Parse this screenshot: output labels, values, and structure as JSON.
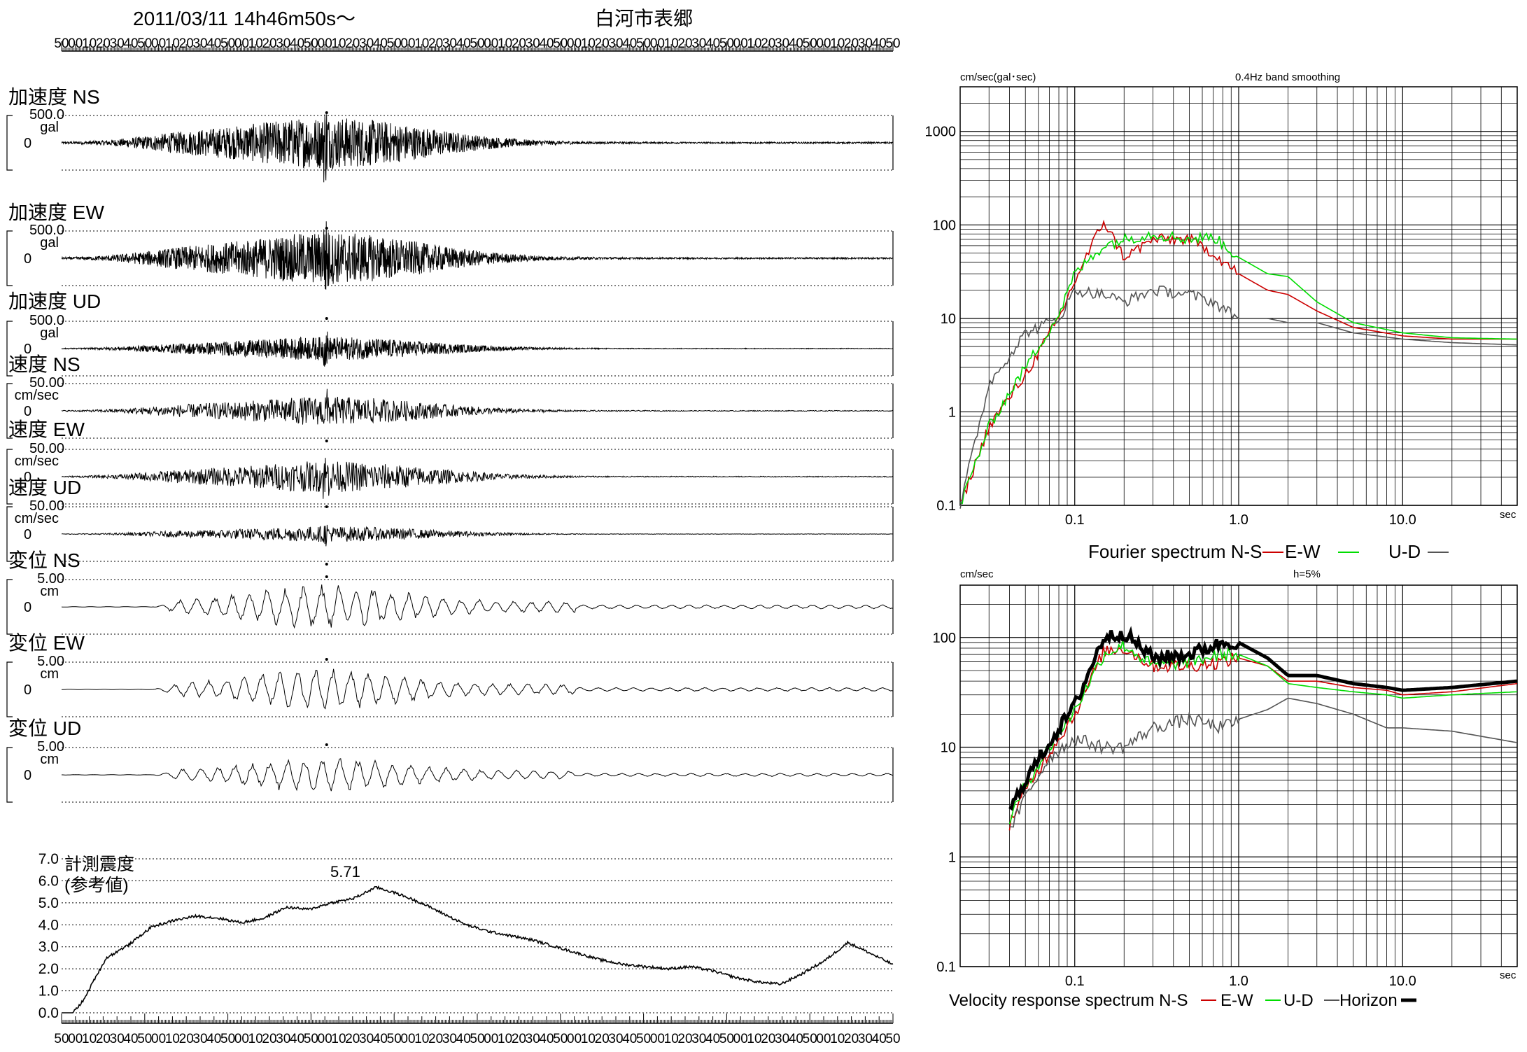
{
  "header": {
    "datetime": "2011/03/11  14h46m50s〜",
    "station": "白河市表郷"
  },
  "time_ticks": [
    "50",
    "00",
    "10",
    "20",
    "30",
    "40",
    "50",
    "00",
    "10",
    "20",
    "30",
    "40",
    "50",
    "00",
    "10",
    "20",
    "30",
    "40",
    "50",
    "00",
    "10",
    "20",
    "30",
    "40",
    "50",
    "00",
    "10",
    "20",
    "30",
    "40",
    "50",
    "00",
    "10",
    "20",
    "30",
    "40",
    "50",
    "00",
    "10",
    "20",
    "30",
    "40",
    "50",
    "00",
    "10",
    "20",
    "30",
    "40",
    "50",
    "00",
    "10",
    "20",
    "30",
    "40",
    "50",
    "00",
    "10",
    "20",
    "30",
    "40",
    "50"
  ],
  "waveforms": [
    {
      "label": "加速度 NS",
      "scale": "500.0",
      "unit": "gal",
      "zero": "0",
      "amp": 1.0,
      "kind": "acc"
    },
    {
      "label": "加速度 EW",
      "scale": "500.0",
      "unit": "gal",
      "zero": "0",
      "amp": 1.0,
      "kind": "acc"
    },
    {
      "label": "加速度 UD",
      "scale": "500.0",
      "unit": "gal",
      "zero": "0",
      "amp": 0.45,
      "kind": "acc"
    },
    {
      "label": "速度 NS",
      "scale": "50.00",
      "unit": "cm/sec",
      "zero": "0",
      "amp": 0.55,
      "kind": "vel"
    },
    {
      "label": "速度 EW",
      "scale": "50.00",
      "unit": "cm/sec",
      "zero": "0",
      "amp": 0.6,
      "kind": "vel"
    },
    {
      "label": "速度 UD",
      "scale": "50.00",
      "unit": "cm/sec",
      "zero": "0",
      "amp": 0.3,
      "kind": "vel"
    },
    {
      "label": "変位 NS",
      "scale": "5.00",
      "unit": "cm",
      "zero": "0",
      "amp": 0.9,
      "kind": "disp"
    },
    {
      "label": "変位 EW",
      "scale": "5.00",
      "unit": "cm",
      "zero": "0",
      "amp": 0.85,
      "kind": "disp"
    },
    {
      "label": "変位 UD",
      "scale": "5.00",
      "unit": "cm",
      "zero": "0",
      "amp": 0.7,
      "kind": "disp"
    }
  ],
  "intensity": {
    "label_line1": "計測震度",
    "label_line2": "(参考値)",
    "peak_label": "5.71",
    "y_ticks": [
      "7.0",
      "6.0",
      "5.0",
      "4.0",
      "3.0",
      "2.0",
      "1.0",
      "0.0"
    ]
  },
  "fourier": {
    "yunit": "cm/sec(gal･sec)",
    "note": "0.4Hz band smoothing",
    "xunit": "sec",
    "caption": "Fourier spectrum  N-S",
    "legend": [
      {
        "name": "N-S",
        "color": "#cc0000"
      },
      {
        "name": "E-W",
        "color": "#00dd00"
      },
      {
        "name": "U-D",
        "color": "#555555"
      }
    ]
  },
  "response": {
    "yunit": "cm/sec",
    "note": "h=5%",
    "xunit": "sec",
    "caption": "Velocity response spectrum N-S",
    "legend": [
      {
        "name": "N-S",
        "color": "#cc0000"
      },
      {
        "name": "E-W",
        "color": "#00dd00"
      },
      {
        "name": "U-D",
        "color": "#555555"
      },
      {
        "name": "Horizon",
        "color": "#000000"
      }
    ]
  },
  "chart_data": [
    {
      "type": "line",
      "title": "計測震度 (参考値)",
      "xlabel": "",
      "ylabel": "",
      "ylim": [
        0,
        7
      ],
      "x": [
        0,
        5,
        10,
        15,
        20,
        30,
        40,
        50,
        60,
        70,
        80,
        90,
        100,
        110,
        120,
        130,
        140,
        150,
        160,
        170,
        180,
        190,
        200,
        210,
        220,
        230,
        240,
        250,
        260,
        270,
        280,
        290,
        300,
        310,
        320,
        330,
        340,
        350,
        360,
        370
      ],
      "series": [
        {
          "name": "",
          "values": [
            0,
            0,
            0.6,
            1.6,
            2.5,
            3.1,
            3.9,
            4.2,
            4.4,
            4.3,
            4.1,
            4.3,
            4.8,
            4.7,
            5.0,
            5.2,
            5.71,
            5.4,
            5.0,
            4.5,
            4.0,
            3.7,
            3.5,
            3.3,
            3.0,
            2.7,
            2.4,
            2.2,
            2.1,
            2.0,
            2.1,
            1.9,
            1.6,
            1.4,
            1.3,
            1.8,
            2.4,
            3.2,
            2.7,
            2.2
          ]
        }
      ],
      "peak": 5.71
    },
    {
      "type": "line",
      "title": "Fourier spectrum",
      "xlabel": "sec",
      "ylabel": "cm/sec(gal･sec)",
      "xscale": "log",
      "yscale": "log",
      "xlim": [
        0.02,
        50
      ],
      "ylim": [
        0.1,
        3000
      ],
      "x": [
        0.02,
        0.03,
        0.05,
        0.08,
        0.1,
        0.15,
        0.2,
        0.3,
        0.5,
        0.7,
        1.0,
        1.5,
        2.0,
        3.0,
        5.0,
        10.0,
        20.0,
        50.0
      ],
      "series": [
        {
          "name": "N-S",
          "values": [
            0.1,
            0.7,
            2.5,
            10,
            25,
            110,
            45,
            70,
            70,
            50,
            30,
            20,
            18,
            12,
            8,
            6.5,
            6,
            6
          ]
        },
        {
          "name": "E-W",
          "values": [
            0.1,
            0.7,
            3,
            11,
            30,
            60,
            70,
            80,
            70,
            75,
            45,
            30,
            28,
            15,
            9,
            7,
            6.2,
            6
          ]
        },
        {
          "name": "U-D",
          "values": [
            0.1,
            2,
            7,
            10,
            20,
            18,
            15,
            20,
            18,
            15,
            10,
            10,
            9,
            9,
            7,
            6,
            5.5,
            5.2
          ]
        }
      ]
    },
    {
      "type": "line",
      "title": "Velocity response spectrum",
      "xlabel": "sec",
      "ylabel": "cm/sec",
      "xscale": "log",
      "yscale": "log",
      "xlim": [
        0.02,
        50
      ],
      "ylim": [
        0.1,
        300
      ],
      "x": [
        0.04,
        0.05,
        0.07,
        0.1,
        0.15,
        0.2,
        0.3,
        0.5,
        0.8,
        1.0,
        1.5,
        2.0,
        3.0,
        5.0,
        8.0,
        10.0,
        20.0,
        50.0
      ],
      "series": [
        {
          "name": "N-S",
          "values": [
            2.0,
            4.0,
            9,
            20,
            75,
            80,
            55,
            55,
            60,
            65,
            55,
            40,
            40,
            35,
            33,
            30,
            32,
            38
          ]
        },
        {
          "name": "E-W",
          "values": [
            2.2,
            4.5,
            10,
            22,
            70,
            85,
            55,
            60,
            70,
            70,
            55,
            38,
            35,
            32,
            30,
            28,
            30,
            32
          ]
        },
        {
          "name": "U-D",
          "values": [
            1.7,
            3.5,
            8,
            12,
            10,
            10,
            15,
            18,
            15,
            18,
            22,
            28,
            25,
            20,
            15,
            15,
            14,
            11
          ]
        },
        {
          "name": "Horizon",
          "values": [
            2.6,
            5.0,
            11,
            24,
            100,
            110,
            65,
            70,
            90,
            90,
            65,
            45,
            45,
            38,
            35,
            33,
            35,
            40
          ]
        }
      ]
    }
  ]
}
